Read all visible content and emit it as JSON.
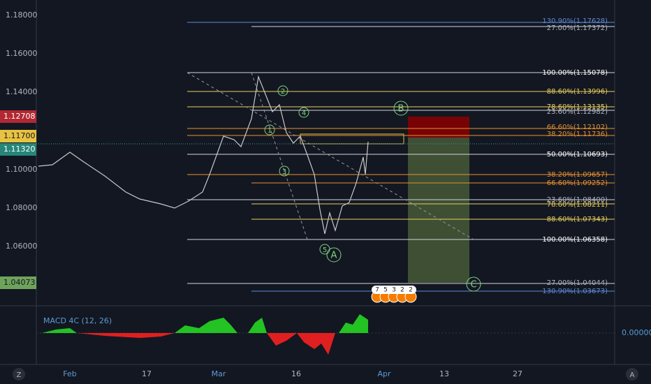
{
  "price_axis": [
    "1.18000",
    "1.16000",
    "1.14000",
    "1.10000",
    "1.08000",
    "1.06000"
  ],
  "price_badges": [
    "1.12708",
    "1.11700",
    "1.11320",
    "1.04073"
  ],
  "fib_levels": [
    "130.90%(1.17628)",
    "27.00%(1.17372)",
    "100.00%(1.15078)",
    "88.60%(1.13996)",
    "78.60%(1.13135)",
    "23.60%(1.12982)",
    "66.60%(1.12102)",
    "38.20%(1.11736)",
    "50.00%(1.10693)",
    "38.20%(1.09657)",
    "66.60%(1.09252)",
    "23.60%(1.08400)",
    "78.60%(1.08211)",
    "88.60%(1.07343)",
    "100.00%(1.06358)",
    "27.00%(1.04044)",
    "130.90%(1.03673)"
  ],
  "wave_labels": [
    "1",
    "2",
    "3",
    "4",
    "5",
    "A",
    "B",
    "C"
  ],
  "event_badges": [
    "7",
    "5",
    "3",
    "2",
    "2"
  ],
  "indicator": {
    "name": "MACD 4C (12, 26)",
    "axis_label": "0.00000"
  },
  "time_axis": [
    "Feb",
    "17",
    "Mar",
    "16",
    "Apr",
    "13",
    "27"
  ],
  "buttons": [
    "Z",
    "A"
  ]
}
